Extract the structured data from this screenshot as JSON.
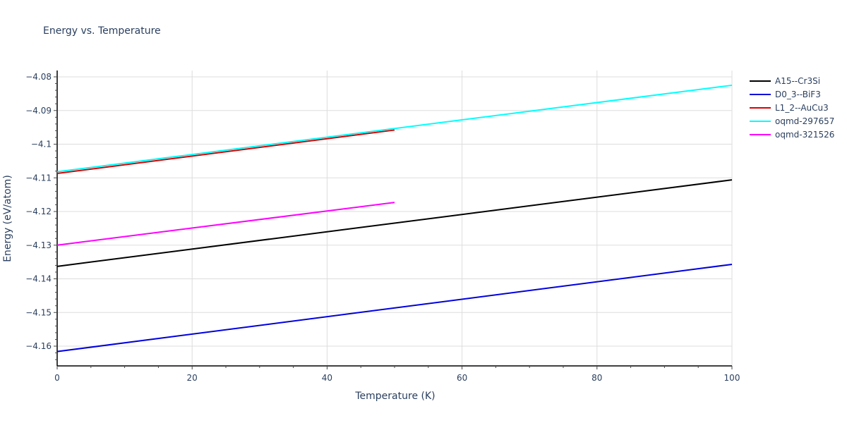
{
  "chart_data": {
    "type": "line",
    "title": "Energy vs. Temperature",
    "xlabel": "Temperature (K)",
    "ylabel": "Energy (eV/atom)",
    "xlim": [
      0,
      100
    ],
    "ylim": [
      -4.1665,
      -4.0775
    ],
    "x_ticks": [
      0,
      20,
      40,
      60,
      80,
      100
    ],
    "y_ticks": [
      -4.08,
      -4.09,
      -4.1,
      -4.11,
      -4.12,
      -4.13,
      -4.14,
      -4.15,
      -4.16
    ],
    "y_tick_labels": [
      "−4.08",
      "−4.09",
      "−4.1",
      "−4.11",
      "−4.12",
      "−4.13",
      "−4.14",
      "−4.15",
      "−4.16"
    ],
    "grid": true,
    "legend_position": "right",
    "series": [
      {
        "name": "A15--Cr3Si",
        "color": "#000000",
        "x": [
          0,
          100
        ],
        "y": [
          -4.1363,
          -4.1106
        ]
      },
      {
        "name": "D0_3--BiF3",
        "color": "#0000dd",
        "x": [
          0,
          100
        ],
        "y": [
          -4.1616,
          -4.1357
        ]
      },
      {
        "name": "L1_2--AuCu3",
        "color": "#dd0000",
        "x": [
          0,
          50
        ],
        "y": [
          -4.1087,
          -4.0958
        ]
      },
      {
        "name": "oqmd-297657",
        "color": "#00ffff",
        "x": [
          0,
          100
        ],
        "y": [
          -4.1082,
          -4.0825
        ]
      },
      {
        "name": "oqmd-321526",
        "color": "#ff00ff",
        "x": [
          0,
          50
        ],
        "y": [
          -4.13,
          -4.1173
        ]
      }
    ]
  },
  "legend": {
    "items": [
      {
        "label": "A15--Cr3Si",
        "color": "#000000"
      },
      {
        "label": "D0_3--BiF3",
        "color": "#0000dd"
      },
      {
        "label": "L1_2--AuCu3",
        "color": "#dd0000"
      },
      {
        "label": "oqmd-297657",
        "color": "#00ffff"
      },
      {
        "label": "oqmd-321526",
        "color": "#ff00ff"
      }
    ]
  }
}
